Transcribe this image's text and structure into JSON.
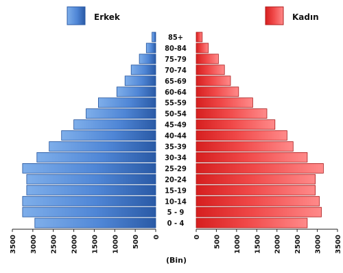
{
  "chart_data": {
    "type": "bar",
    "orientation": "horizontal",
    "variant": "population-pyramid",
    "unit_label": "(Bin)",
    "xlim": [
      0,
      3500
    ],
    "ticks": [
      0,
      500,
      1000,
      1500,
      2000,
      2500,
      3000,
      3500
    ],
    "categories": [
      "0 - 4",
      "5 - 9",
      "10-14",
      "15-19",
      "20-24",
      "25-29",
      "30-34",
      "35-39",
      "40-44",
      "45-49",
      "50-54",
      "55-59",
      "60-64",
      "65-69",
      "70-74",
      "75-79",
      "80-84",
      "85+"
    ],
    "series": [
      {
        "name": "Erkek",
        "side": "left",
        "color": "#4f86d6",
        "values": [
          2950,
          3250,
          3250,
          3150,
          3150,
          3250,
          2900,
          2600,
          2300,
          2000,
          1700,
          1400,
          950,
          750,
          600,
          400,
          230,
          90
        ]
      },
      {
        "name": "Kadın",
        "side": "right",
        "color": "#ef3a3a",
        "values": [
          2750,
          3100,
          3050,
          2950,
          2950,
          3150,
          2750,
          2400,
          2250,
          1950,
          1750,
          1400,
          1050,
          850,
          700,
          550,
          300,
          150
        ]
      }
    ],
    "grid": false,
    "legend": "top"
  }
}
